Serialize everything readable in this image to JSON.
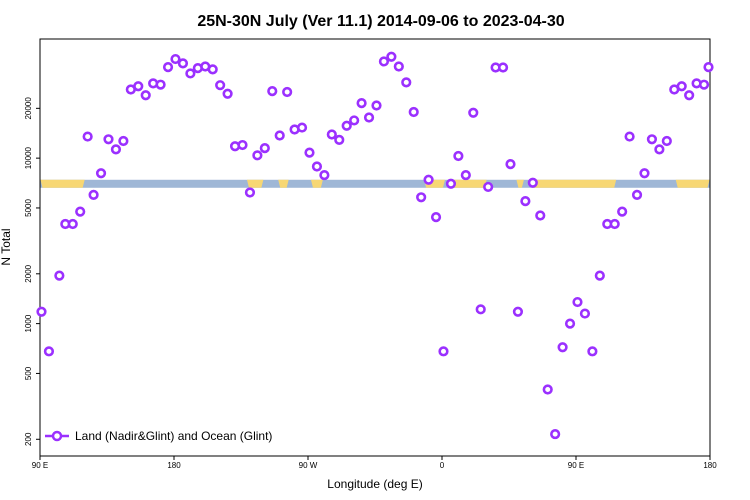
{
  "chart_data": {
    "type": "scatter",
    "title": "25N-30N July (Ver 11.1)   2014-09-06 to 2023-04-30",
    "xlabel": "Longitude (deg E)",
    "ylabel": "N Total",
    "xlim": [
      90,
      540
    ],
    "ylim_log10": [
      2.2,
      4.72
    ],
    "y_scale": "log",
    "x_ticks": [
      {
        "value": 90,
        "label": "90 E"
      },
      {
        "value": 180,
        "label": "180"
      },
      {
        "value": 270,
        "label": "90 W"
      },
      {
        "value": 360,
        "label": "0"
      },
      {
        "value": 450,
        "label": "90 E"
      },
      {
        "value": 540,
        "label": "180"
      }
    ],
    "y_ticks": [
      {
        "value": 200,
        "label": "200"
      },
      {
        "value": 500,
        "label": "500"
      },
      {
        "value": 1000,
        "label": "1000"
      },
      {
        "value": 2000,
        "label": "2000"
      },
      {
        "value": 5000,
        "label": "5000"
      },
      {
        "value": 10000,
        "label": "10000"
      },
      {
        "value": 20000,
        "label": "20000"
      }
    ],
    "landmask": {
      "y_value": 7000,
      "ocean_color": "#9fb7d6",
      "land_color": "#f7d774",
      "land_ranges": [
        [
          90,
          120
        ],
        [
          229,
          240
        ],
        [
          250,
          257
        ],
        [
          272,
          280
        ],
        [
          348,
          362
        ],
        [
          364,
          390
        ],
        [
          410,
          415
        ],
        [
          420,
          477
        ],
        [
          517,
          540
        ]
      ]
    },
    "series": [
      {
        "name": "Land (Nadir&Glint) and Ocean (Glint)",
        "color": "#9b30ff",
        "points": [
          [
            91,
            1180
          ],
          [
            96,
            680
          ],
          [
            103,
            1950
          ],
          [
            107,
            4000
          ],
          [
            112,
            4000
          ],
          [
            117,
            4750
          ],
          [
            122,
            13500
          ],
          [
            126,
            6000
          ],
          [
            131,
            8100
          ],
          [
            136,
            13000
          ],
          [
            141,
            11300
          ],
          [
            146,
            12700
          ],
          [
            151,
            26000
          ],
          [
            156,
            27200
          ],
          [
            161,
            24000
          ],
          [
            166,
            28300
          ],
          [
            171,
            27800
          ],
          [
            176,
            35500
          ],
          [
            181,
            39700
          ],
          [
            186,
            37400
          ],
          [
            191,
            32500
          ],
          [
            196,
            35000
          ],
          [
            201,
            35800
          ],
          [
            206,
            34400
          ],
          [
            211,
            27600
          ],
          [
            216,
            24500
          ],
          [
            221,
            11800
          ],
          [
            226,
            12000
          ],
          [
            231,
            6200
          ],
          [
            236,
            10400
          ],
          [
            241,
            11500
          ],
          [
            246,
            25400
          ],
          [
            251,
            13700
          ],
          [
            256,
            25100
          ],
          [
            261,
            14900
          ],
          [
            266,
            15300
          ],
          [
            271,
            10800
          ],
          [
            276,
            8900
          ],
          [
            281,
            7900
          ],
          [
            286,
            13900
          ],
          [
            291,
            12900
          ],
          [
            296,
            15700
          ],
          [
            301,
            16900
          ],
          [
            306,
            21500
          ],
          [
            311,
            17600
          ],
          [
            316,
            20800
          ],
          [
            321,
            38400
          ],
          [
            326,
            41000
          ],
          [
            331,
            35800
          ],
          [
            336,
            28700
          ],
          [
            341,
            19000
          ],
          [
            346,
            5800
          ],
          [
            351,
            7400
          ],
          [
            356,
            4400
          ],
          [
            361,
            680
          ],
          [
            366,
            7000
          ],
          [
            371,
            10300
          ],
          [
            376,
            7900
          ],
          [
            381,
            18800
          ],
          [
            386,
            1220
          ],
          [
            391,
            6700
          ],
          [
            396,
            35300
          ],
          [
            401,
            35300
          ],
          [
            406,
            9200
          ],
          [
            411,
            1180
          ],
          [
            416,
            5500
          ],
          [
            421,
            7100
          ],
          [
            426,
            4500
          ],
          [
            431,
            400
          ],
          [
            436,
            215
          ],
          [
            441,
            720
          ],
          [
            446,
            1000
          ],
          [
            451,
            1350
          ],
          [
            456,
            1150
          ],
          [
            461,
            680
          ],
          [
            466,
            1950
          ],
          [
            471,
            4000
          ],
          [
            476,
            4000
          ],
          [
            481,
            4750
          ],
          [
            486,
            13500
          ],
          [
            491,
            6000
          ],
          [
            496,
            8100
          ],
          [
            501,
            13000
          ],
          [
            506,
            11300
          ],
          [
            511,
            12700
          ],
          [
            516,
            26000
          ],
          [
            521,
            27200
          ],
          [
            526,
            24000
          ],
          [
            531,
            28300
          ],
          [
            536,
            27800
          ],
          [
            539,
            35500
          ]
        ]
      }
    ]
  }
}
